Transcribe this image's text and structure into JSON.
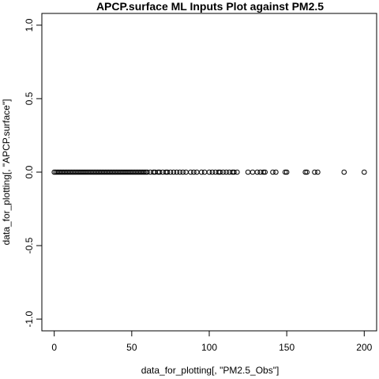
{
  "chart_data": {
    "type": "scatter",
    "title": "APCP.surface ML Inputs Plot against PM2.5",
    "xlabel": "data_for_plotting[, \"PM2.5_Obs\"]",
    "ylabel": "data_for_plotting[, \"APCP.surface\"]",
    "color": "#000000",
    "x": [
      0,
      1,
      2,
      3,
      4,
      5,
      6,
      7,
      8,
      9,
      10,
      11,
      12,
      13,
      14,
      15,
      16,
      17,
      18,
      19,
      20,
      21,
      22,
      23,
      24,
      25,
      26,
      27,
      28,
      29,
      30,
      31,
      32,
      33,
      34,
      35,
      36,
      37,
      38,
      39,
      40,
      41,
      42,
      43,
      44,
      45,
      46,
      47,
      48,
      49,
      50,
      51,
      52,
      53,
      54,
      55,
      56,
      57,
      58,
      59,
      60,
      62,
      64,
      65,
      67,
      68,
      70,
      72,
      73,
      75,
      77,
      79,
      81,
      83,
      85,
      88,
      90,
      92,
      95,
      97,
      100,
      102,
      104,
      106,
      107,
      109,
      111,
      113,
      115,
      116,
      118,
      125,
      128,
      131,
      133,
      135,
      136,
      141,
      143,
      149,
      150,
      162,
      163,
      168,
      170,
      187,
      200
    ],
    "y": [
      0,
      0,
      0,
      0,
      0,
      0,
      0,
      0,
      0,
      0,
      0,
      0,
      0,
      0,
      0,
      0,
      0,
      0,
      0,
      0,
      0,
      0,
      0,
      0,
      0,
      0,
      0,
      0,
      0,
      0,
      0,
      0,
      0,
      0,
      0,
      0,
      0,
      0,
      0,
      0,
      0,
      0,
      0,
      0,
      0,
      0,
      0,
      0,
      0,
      0,
      0,
      0,
      0,
      0,
      0,
      0,
      0,
      0,
      0,
      0,
      0,
      0,
      0,
      0,
      0,
      0,
      0,
      0,
      0,
      0,
      0,
      0,
      0,
      0,
      0,
      0,
      0,
      0,
      0,
      0,
      0,
      0,
      0,
      0,
      0,
      0,
      0,
      0,
      0,
      0,
      0,
      0,
      0,
      0,
      0,
      0,
      0,
      0,
      0,
      0,
      0,
      0,
      0,
      0,
      0,
      0,
      0
    ],
    "xlim": [
      -8,
      208
    ],
    "ylim": [
      -1.08,
      1.08
    ],
    "xticks": [
      0,
      50,
      100,
      150,
      200
    ],
    "yticks": [
      {
        "value": -1,
        "label": "-1.0"
      },
      -0.5,
      {
        "value": 0,
        "label": "0.0"
      },
      0.5,
      {
        "value": 1,
        "label": "1.0"
      }
    ]
  }
}
